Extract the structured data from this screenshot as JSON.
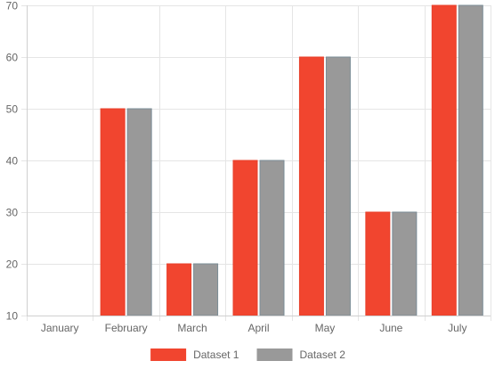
{
  "chart_data": {
    "type": "bar",
    "categories": [
      "January",
      "February",
      "March",
      "April",
      "May",
      "June",
      "July"
    ],
    "series": [
      {
        "name": "Dataset 1",
        "values": [
          10,
          50,
          20,
          40,
          60,
          30,
          70
        ],
        "color": "#F1452F",
        "border": "#E8402B"
      },
      {
        "name": "Dataset 2",
        "values": [
          10,
          50,
          20,
          40,
          60,
          30,
          70
        ],
        "color": "#999999",
        "border": "#7A8C96"
      }
    ],
    "ylim": [
      10,
      70
    ],
    "yticks": [
      10,
      20,
      30,
      40,
      50,
      60,
      70
    ],
    "grid": true,
    "legend": "bottom",
    "title": "",
    "xlabel": "",
    "ylabel": ""
  }
}
